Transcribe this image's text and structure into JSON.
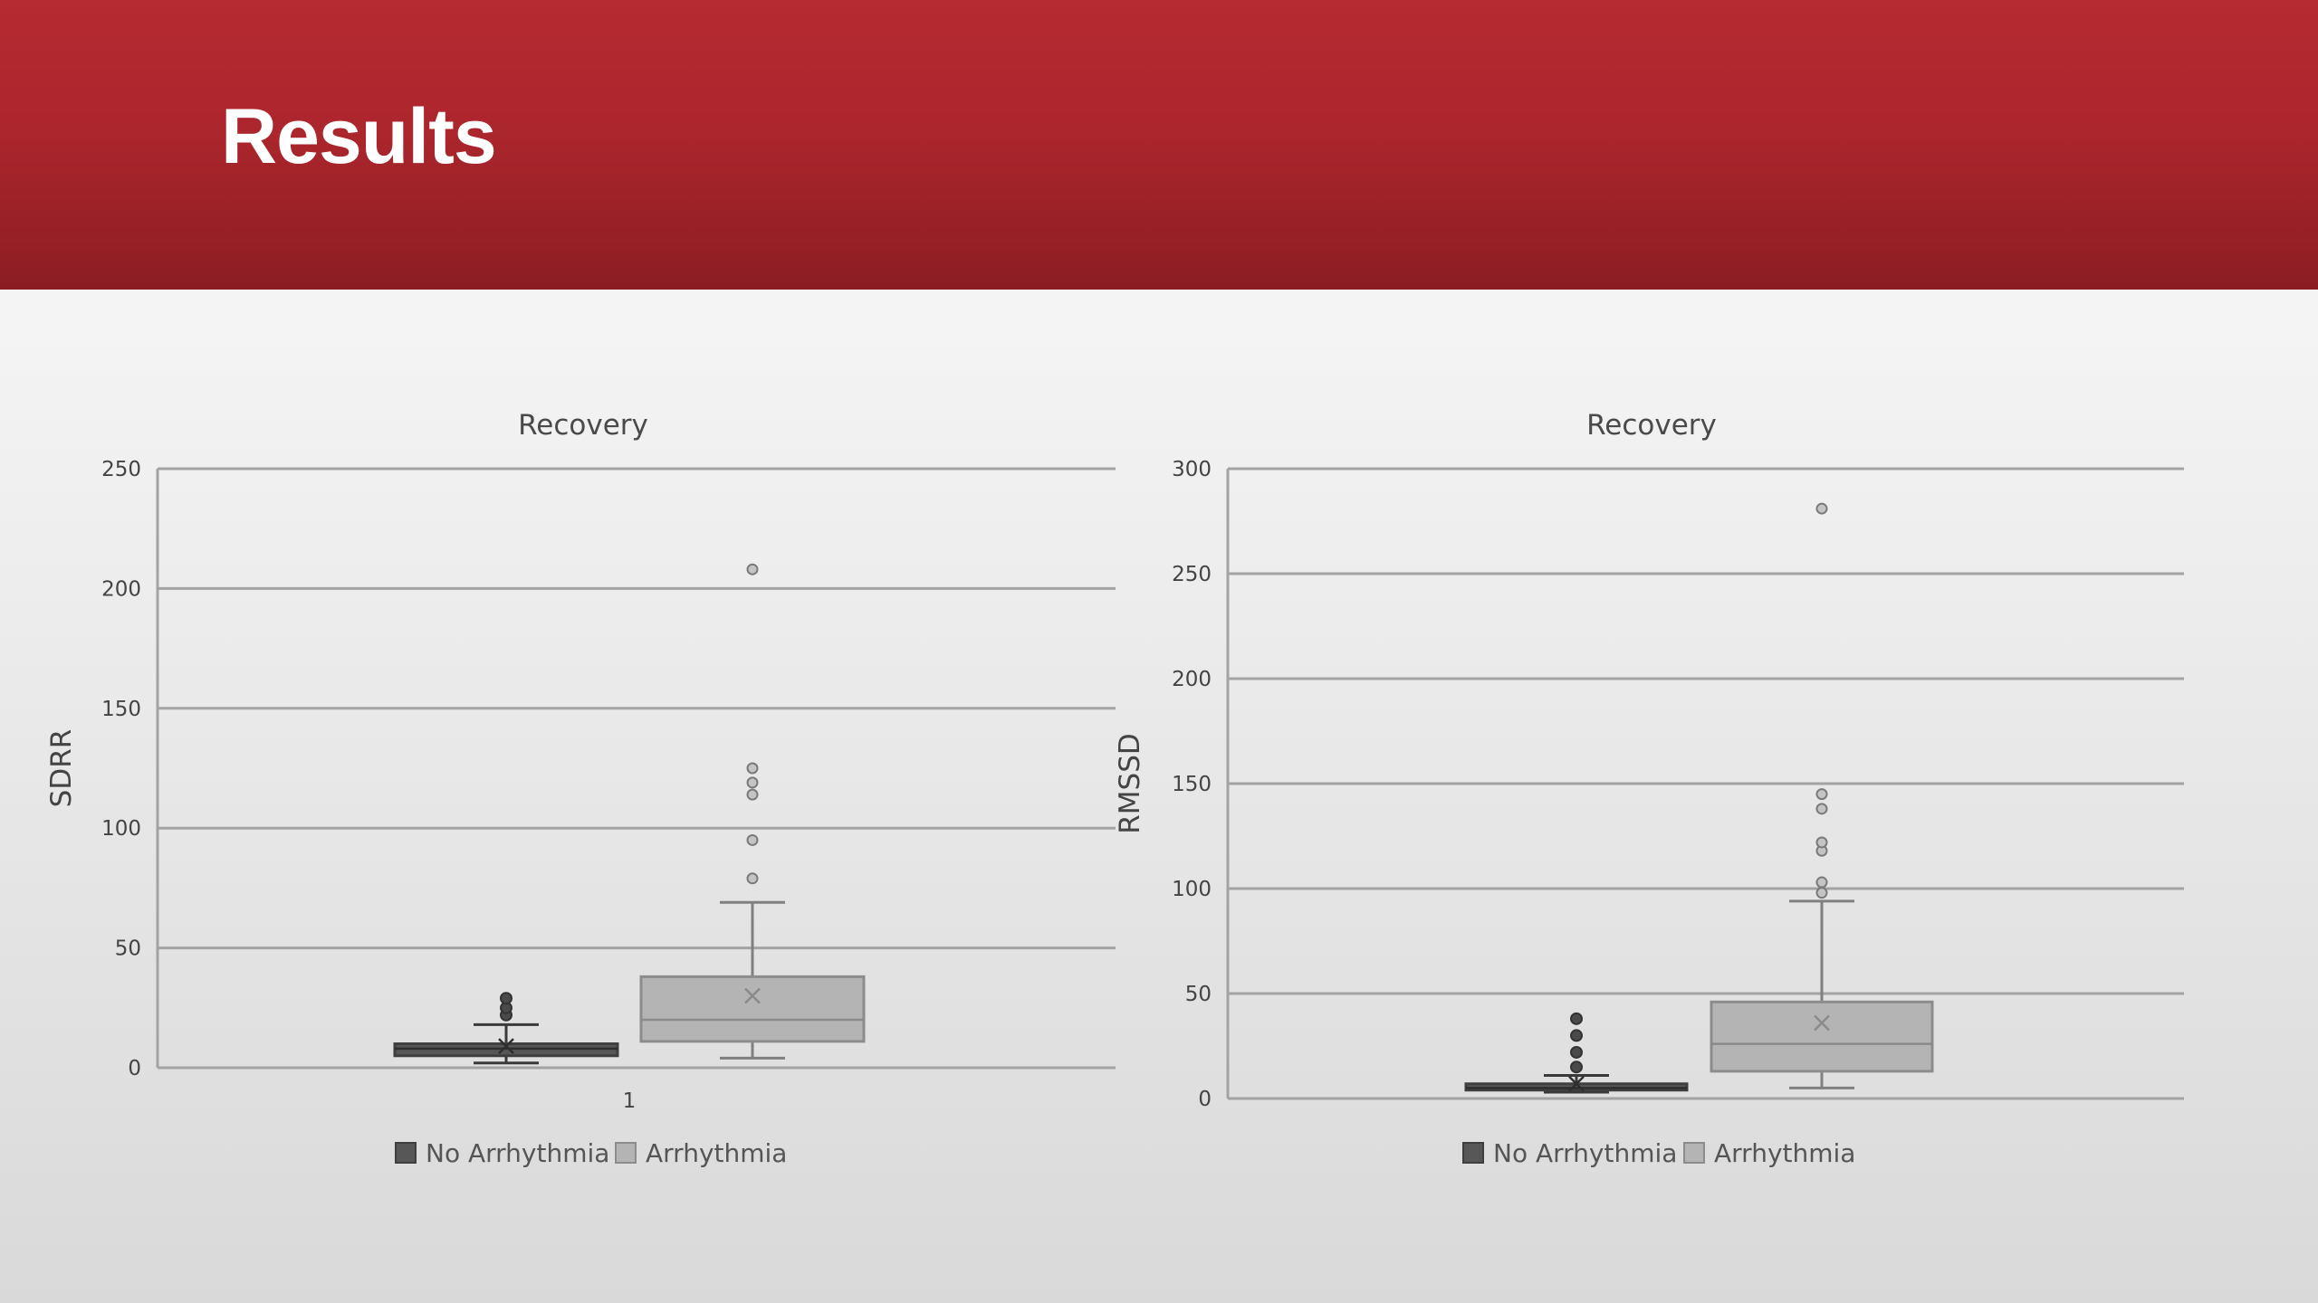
{
  "slide": {
    "title": "Results"
  },
  "chart_data": [
    {
      "type": "box",
      "title": "Recovery",
      "xlabel": "",
      "ylabel": "SDRR",
      "ylim": [
        0,
        250
      ],
      "yticks": [
        0,
        50,
        100,
        150,
        200,
        250
      ],
      "categories": [
        "1"
      ],
      "grid": true,
      "legend_position": "bottom",
      "series": [
        {
          "name": "No Arrhythmia",
          "color": "#575757",
          "stats": {
            "min": 2,
            "q1": 5,
            "median": 8,
            "q3": 10,
            "max": 18,
            "mean": 9
          },
          "outliers": [
            22,
            25,
            29
          ]
        },
        {
          "name": "Arrhythmia",
          "color": "#b4b4b4",
          "stats": {
            "min": 4,
            "q1": 11,
            "median": 20,
            "q3": 38,
            "max": 69,
            "mean": 30
          },
          "outliers": [
            79,
            95,
            114,
            119,
            125,
            208
          ]
        }
      ]
    },
    {
      "type": "box",
      "title": "Recovery",
      "xlabel": "",
      "ylabel": "RMSSD",
      "ylim": [
        0,
        300
      ],
      "yticks": [
        0,
        50,
        100,
        150,
        200,
        250,
        300
      ],
      "categories": [],
      "grid": true,
      "legend_position": "bottom",
      "series": [
        {
          "name": "No Arrhythmia",
          "color": "#575757",
          "stats": {
            "min": 3,
            "q1": 4,
            "median": 5,
            "q3": 7,
            "max": 11,
            "mean": 7
          },
          "outliers": [
            15,
            22,
            30,
            38
          ]
        },
        {
          "name": "Arrhythmia",
          "color": "#b4b4b4",
          "stats": {
            "min": 5,
            "q1": 13,
            "median": 26,
            "q3": 46,
            "max": 94,
            "mean": 36
          },
          "outliers": [
            98,
            103,
            118,
            122,
            138,
            145,
            281
          ]
        }
      ]
    }
  ]
}
